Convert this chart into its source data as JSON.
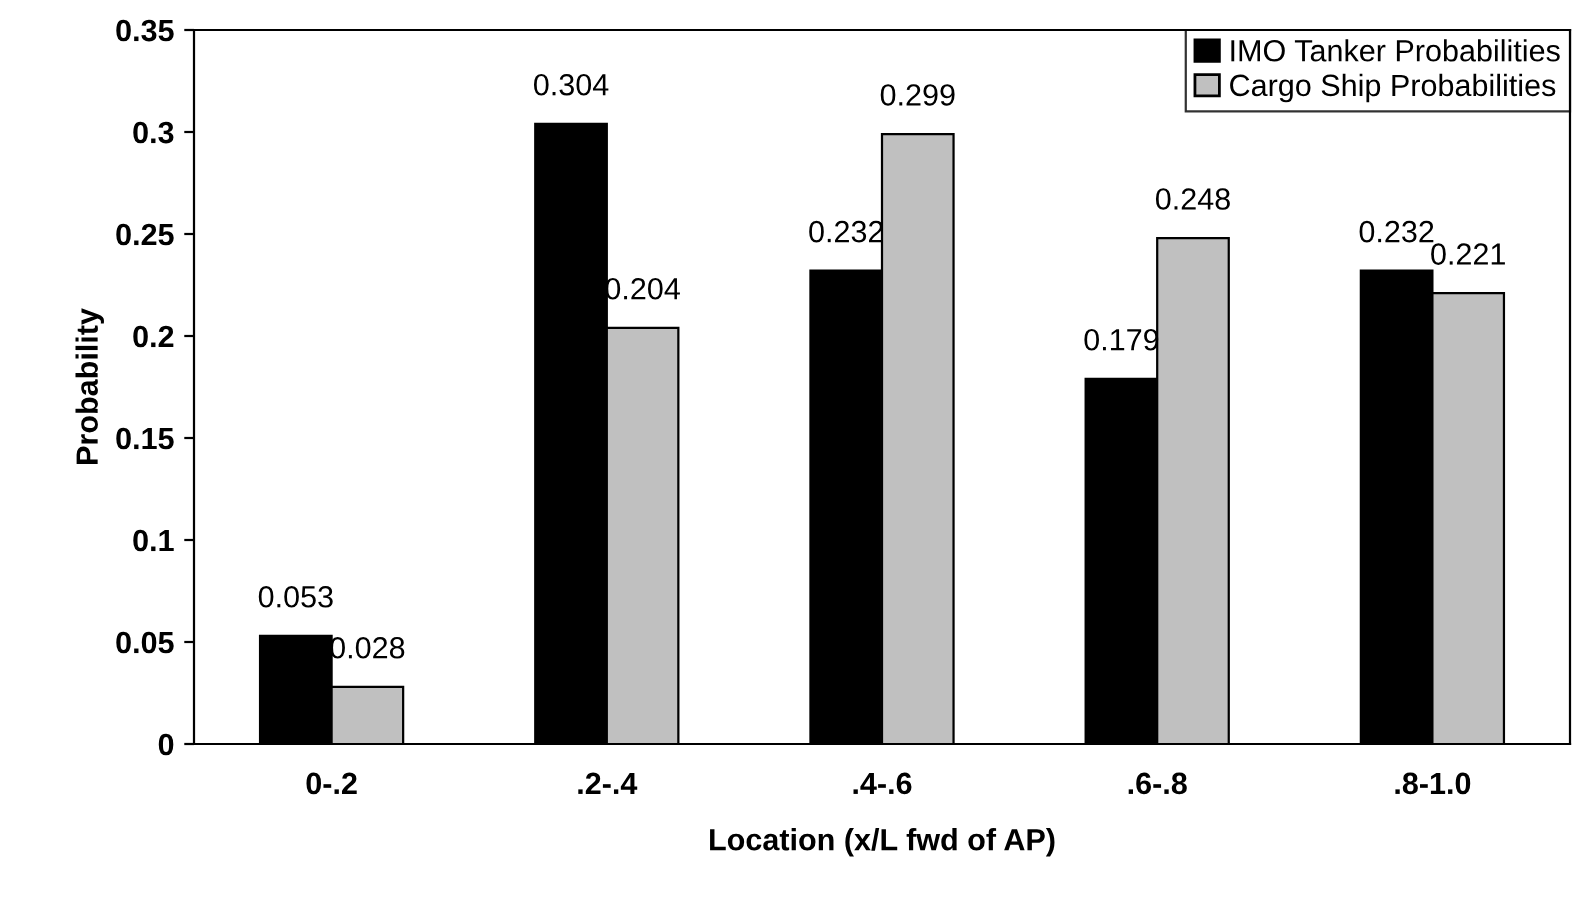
{
  "chart_data": {
    "type": "bar",
    "xlabel": "Location (x/L fwd of AP)",
    "ylabel": "Probability",
    "categories": [
      "0-.2",
      ".2-.4",
      ".4-.6",
      ".6-.8",
      ".8-1.0"
    ],
    "series": [
      {
        "name": "IMO Tanker Probabilities",
        "color": "#000000",
        "values": [
          0.053,
          0.304,
          0.232,
          0.179,
          0.232
        ]
      },
      {
        "name": "Cargo Ship Probabilities",
        "color": "#c0c0c0",
        "values": [
          0.028,
          0.204,
          0.299,
          0.248,
          0.221
        ]
      }
    ],
    "ylim": [
      0,
      0.35
    ],
    "yticks": [
      0,
      0.05,
      0.1,
      0.15,
      0.2,
      0.25,
      0.3,
      0.35
    ],
    "data_labels": true,
    "grid": false,
    "legend": "top right"
  }
}
